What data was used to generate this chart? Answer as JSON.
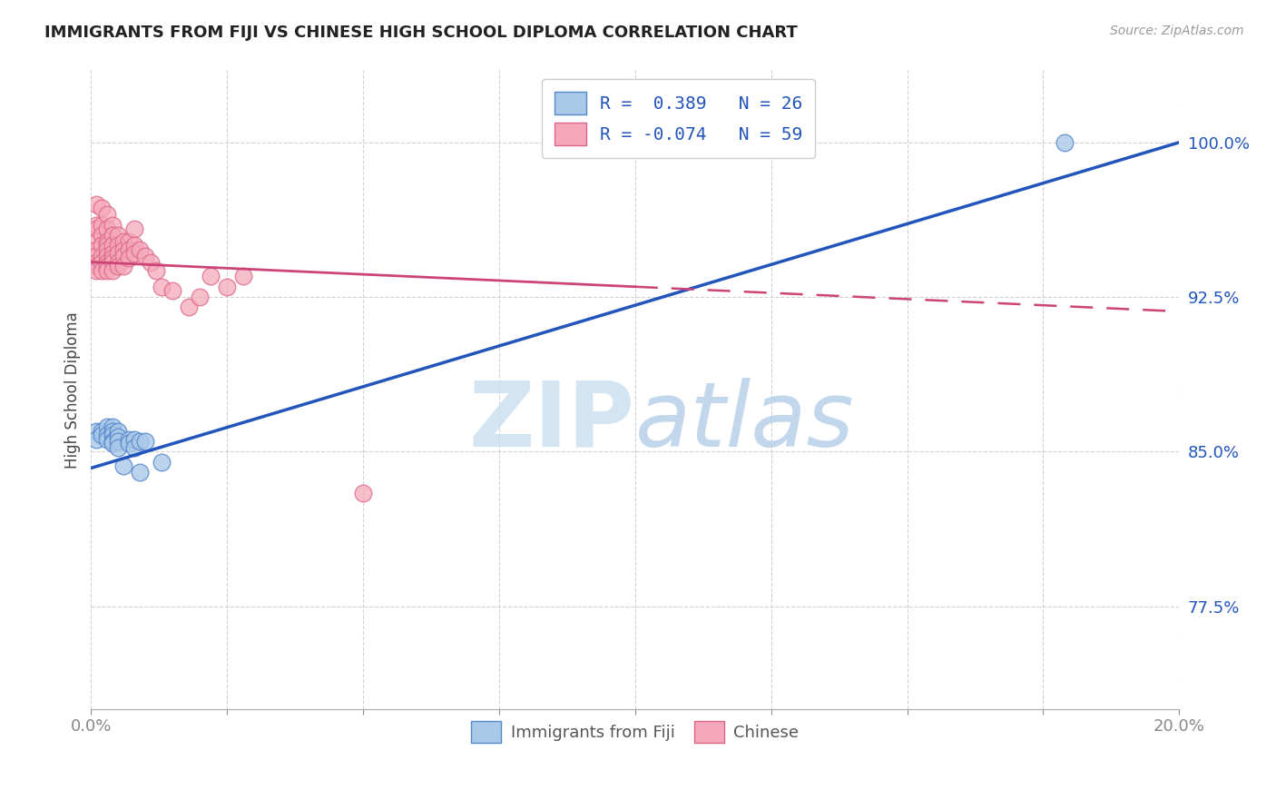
{
  "title": "IMMIGRANTS FROM FIJI VS CHINESE HIGH SCHOOL DIPLOMA CORRELATION CHART",
  "source": "Source: ZipAtlas.com",
  "ylabel": "High School Diploma",
  "yticks": [
    77.5,
    85.0,
    92.5,
    100.0
  ],
  "xlim": [
    0.0,
    0.2
  ],
  "ylim": [
    0.725,
    1.035
  ],
  "legend_r_fiji": "R =  0.389",
  "legend_n_fiji": "N = 26",
  "legend_r_chinese": "R = -0.074",
  "legend_n_chinese": "N = 59",
  "fiji_color": "#aac8e8",
  "chinese_color": "#f5a8bb",
  "fiji_edge": "#5588cc",
  "chinese_edge": "#dd6688",
  "trend_fiji_color": "#2255bb",
  "trend_chinese_color": "#cc4477",
  "watermark_zip": "ZIP",
  "watermark_atlas": "atlas",
  "fiji_x": [
    0.001,
    0.001,
    0.002,
    0.002,
    0.003,
    0.003,
    0.003,
    0.004,
    0.004,
    0.004,
    0.004,
    0.004,
    0.005,
    0.005,
    0.005,
    0.005,
    0.006,
    0.007,
    0.007,
    0.008,
    0.008,
    0.009,
    0.009,
    0.01,
    0.013,
    0.179
  ],
  "fiji_y": [
    0.86,
    0.856,
    0.86,
    0.858,
    0.862,
    0.858,
    0.856,
    0.862,
    0.86,
    0.858,
    0.855,
    0.854,
    0.86,
    0.857,
    0.855,
    0.852,
    0.843,
    0.856,
    0.854,
    0.856,
    0.852,
    0.84,
    0.855,
    0.855,
    0.845,
    1.0
  ],
  "chinese_x": [
    0.001,
    0.001,
    0.001,
    0.001,
    0.001,
    0.001,
    0.001,
    0.001,
    0.001,
    0.002,
    0.002,
    0.002,
    0.002,
    0.002,
    0.002,
    0.002,
    0.003,
    0.003,
    0.003,
    0.003,
    0.003,
    0.003,
    0.003,
    0.003,
    0.003,
    0.004,
    0.004,
    0.004,
    0.004,
    0.004,
    0.004,
    0.004,
    0.005,
    0.005,
    0.005,
    0.005,
    0.005,
    0.006,
    0.006,
    0.006,
    0.006,
    0.007,
    0.007,
    0.007,
    0.008,
    0.008,
    0.008,
    0.009,
    0.01,
    0.011,
    0.012,
    0.013,
    0.015,
    0.018,
    0.02,
    0.022,
    0.025,
    0.028,
    0.05
  ],
  "chinese_y": [
    0.97,
    0.96,
    0.958,
    0.952,
    0.948,
    0.945,
    0.942,
    0.94,
    0.938,
    0.968,
    0.96,
    0.955,
    0.95,
    0.945,
    0.942,
    0.938,
    0.965,
    0.958,
    0.952,
    0.95,
    0.948,
    0.945,
    0.942,
    0.94,
    0.938,
    0.96,
    0.955,
    0.95,
    0.946,
    0.944,
    0.942,
    0.938,
    0.955,
    0.95,
    0.946,
    0.942,
    0.94,
    0.952,
    0.948,
    0.945,
    0.94,
    0.952,
    0.948,
    0.944,
    0.958,
    0.95,
    0.946,
    0.948,
    0.945,
    0.942,
    0.938,
    0.93,
    0.928,
    0.92,
    0.925,
    0.935,
    0.93,
    0.935,
    0.83
  ],
  "trend_fiji_x0": 0.0,
  "trend_fiji_y0": 0.842,
  "trend_fiji_x1": 0.2,
  "trend_fiji_y1": 1.0,
  "trend_chinese_solid_x0": 0.0,
  "trend_chinese_solid_y0": 0.942,
  "trend_chinese_solid_x1": 0.1,
  "trend_chinese_solid_y1": 0.93,
  "trend_chinese_dash_x0": 0.1,
  "trend_chinese_dash_y0": 0.93,
  "trend_chinese_dash_x1": 0.2,
  "trend_chinese_dash_y1": 0.918
}
